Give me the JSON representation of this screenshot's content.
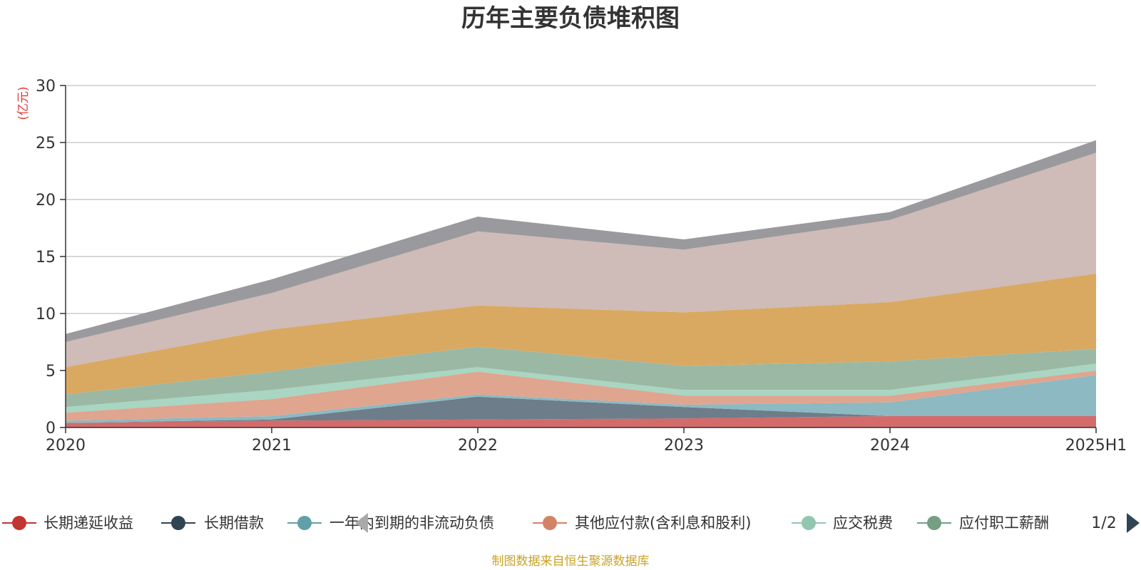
{
  "chart_data": {
    "type": "area",
    "stacked": true,
    "title": "历年主要负债堆积图",
    "ylabel": "(亿元)",
    "categories": [
      "2020",
      "2021",
      "2022",
      "2023",
      "2024",
      "2025H1"
    ],
    "ylim": [
      0,
      30
    ],
    "yticks": [
      0,
      5,
      10,
      15,
      20,
      25,
      30
    ],
    "grid": true,
    "series": [
      {
        "name": "长期递延收益",
        "color": "#d36b6b",
        "values": [
          0.4,
          0.6,
          0.7,
          0.8,
          1.0,
          1.0
        ]
      },
      {
        "name": "长期借款",
        "color": "#6d7d8a",
        "values": [
          0.0,
          0.1,
          2.0,
          1.0,
          0.0,
          0.0
        ]
      },
      {
        "name": "一年内到期的非流动负债",
        "color": "#8cb9c2",
        "values": [
          0.2,
          0.3,
          0.2,
          0.2,
          1.2,
          3.6
        ]
      },
      {
        "name": "其他应付款(含利息和股利)",
        "color": "#dfa58f",
        "values": [
          0.7,
          1.5,
          2.0,
          0.8,
          0.6,
          0.4
        ]
      },
      {
        "name": "应交税费",
        "color": "#a8d6c2",
        "values": [
          0.5,
          0.8,
          0.4,
          0.5,
          0.5,
          0.6
        ]
      },
      {
        "name": "应付职工薪酬",
        "color": "#9bb8a4",
        "values": [
          1.1,
          1.6,
          1.8,
          2.1,
          2.5,
          1.3
        ]
      },
      {
        "name": "",
        "color": "#d9a962",
        "values": [
          2.4,
          3.7,
          3.6,
          4.7,
          5.2,
          6.6
        ]
      },
      {
        "name": "",
        "color": "#cfbbb7",
        "values": [
          2.2,
          3.2,
          6.5,
          5.5,
          7.2,
          10.6
        ]
      },
      {
        "name": "",
        "color": "#9a9a9e",
        "values": [
          0.7,
          1.2,
          1.3,
          0.9,
          0.7,
          1.1
        ]
      }
    ],
    "legend_position": "bottom",
    "legend_page": "1/2",
    "legend_visible": [
      "长期递延收益",
      "长期借款",
      "一年内到期的非流动负债",
      "其他应付款(含利息和股利)",
      "应交税费",
      "应付职工薪酬"
    ],
    "legend_colors": [
      "#c23531",
      "#2f4554",
      "#61a0a8",
      "#d48265",
      "#91c7ae",
      "#749f83"
    ]
  },
  "legend_labels": {
    "l0": "长期递延收益",
    "l1": "长期借款",
    "l2": "一年内到期的非流动负债",
    "l3": "其他应付款(含利息和股利)",
    "l4": "应交税费",
    "l5": "应付职工薪酬"
  },
  "legend_pager": "1/2",
  "source_note": "制图数据来自恒生聚源数据库"
}
